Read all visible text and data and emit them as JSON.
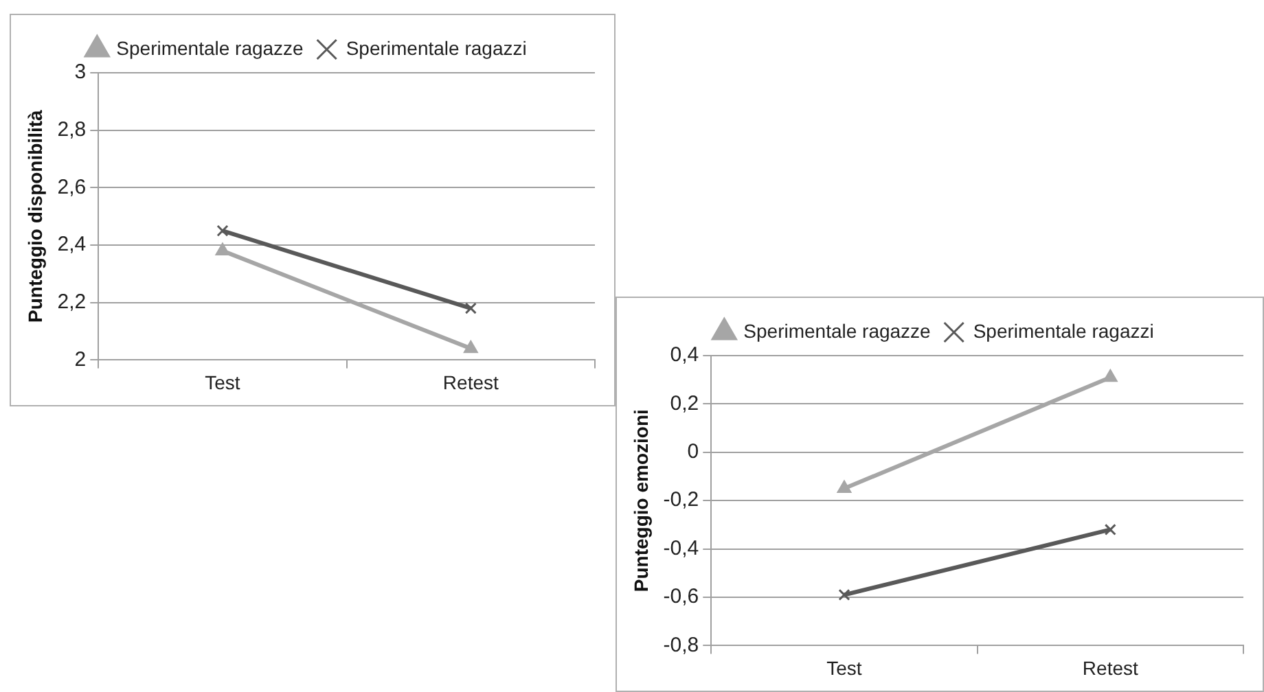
{
  "chart_data": [
    {
      "type": "line",
      "ylabel": "Punteggio disponibilità",
      "categories": [
        "Test",
        "Retest"
      ],
      "ylim": [
        2,
        3
      ],
      "yticks": [
        {
          "value": 2,
          "label": "2"
        },
        {
          "value": 2.2,
          "label": "2,2"
        },
        {
          "value": 2.4,
          "label": "2,4"
        },
        {
          "value": 2.6,
          "label": "2,6"
        },
        {
          "value": 2.8,
          "label": "2,8"
        },
        {
          "value": 3,
          "label": "3"
        }
      ],
      "grid": "y",
      "legend": "top",
      "series": [
        {
          "name": "Sperimentale ragazze",
          "color": "#a6a6a6",
          "marker": "triangle",
          "values": [
            2.38,
            2.04
          ]
        },
        {
          "name": "Sperimentale ragazzi",
          "color": "#595959",
          "marker": "cross",
          "values": [
            2.45,
            2.18
          ]
        }
      ]
    },
    {
      "type": "line",
      "ylabel": "Punteggio emozioni",
      "categories": [
        "Test",
        "Retest"
      ],
      "ylim": [
        -0.8,
        0.4
      ],
      "yticks": [
        {
          "value": -0.8,
          "label": "-0,8"
        },
        {
          "value": -0.6,
          "label": "-0,6"
        },
        {
          "value": -0.4,
          "label": "-0,4"
        },
        {
          "value": -0.2,
          "label": "-0,2"
        },
        {
          "value": 0,
          "label": "0"
        },
        {
          "value": 0.2,
          "label": "0,2"
        },
        {
          "value": 0.4,
          "label": "0,4"
        }
      ],
      "grid": "y",
      "legend": "top",
      "series": [
        {
          "name": "Sperimentale ragazze",
          "color": "#a6a6a6",
          "marker": "triangle",
          "values": [
            -0.15,
            0.31
          ]
        },
        {
          "name": "Sperimentale ragazzi",
          "color": "#595959",
          "marker": "cross",
          "values": [
            -0.59,
            -0.32
          ]
        }
      ]
    }
  ]
}
